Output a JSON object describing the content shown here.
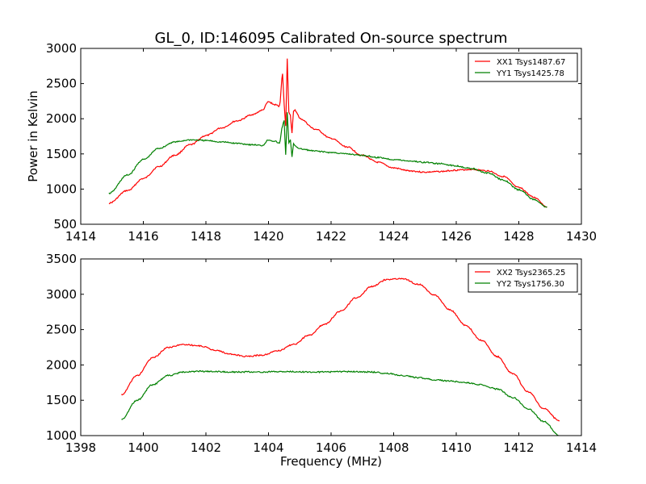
{
  "chart_data": [
    {
      "type": "line",
      "title": "GL_0, ID:146095 Calibrated On-source spectrum",
      "xlabel": "",
      "ylabel": "Power in Kelvin",
      "xlim": [
        1414,
        1430
      ],
      "ylim": [
        500,
        3000
      ],
      "xticks": [
        "1414",
        "1416",
        "1418",
        "1420",
        "1422",
        "1424",
        "1426",
        "1428",
        "1430"
      ],
      "yticks": [
        "500",
        "1000",
        "1500",
        "2000",
        "2500",
        "3000"
      ],
      "grid": false,
      "legend_position": "top-right",
      "series": [
        {
          "name": "XX1 Tsys1487.67",
          "color": "#ff0000",
          "x": [
            1414.9,
            1415.5,
            1416.0,
            1416.5,
            1417.0,
            1417.5,
            1418.0,
            1418.5,
            1419.0,
            1419.5,
            1419.8,
            1420.0,
            1420.2,
            1420.35,
            1420.45,
            1420.5,
            1420.55,
            1420.6,
            1420.65,
            1420.7,
            1420.75,
            1420.8,
            1420.85,
            1420.9,
            1421.0,
            1421.5,
            1422.0,
            1422.5,
            1423.0,
            1423.5,
            1424.0,
            1424.5,
            1425.0,
            1425.5,
            1426.0,
            1426.5,
            1427.0,
            1427.5,
            1428.0,
            1428.5,
            1428.9
          ],
          "values": [
            800,
            980,
            1150,
            1320,
            1480,
            1630,
            1760,
            1870,
            1970,
            2060,
            2120,
            2240,
            2200,
            2180,
            2640,
            2200,
            1900,
            2850,
            2100,
            2050,
            1800,
            2100,
            2120,
            2090,
            2000,
            1850,
            1720,
            1600,
            1480,
            1380,
            1300,
            1260,
            1240,
            1250,
            1270,
            1280,
            1260,
            1180,
            1020,
            880,
            750
          ]
        },
        {
          "name": "YY1 Tsys1425.78",
          "color": "#008000",
          "x": [
            1414.9,
            1415.5,
            1416.0,
            1416.5,
            1417.0,
            1417.5,
            1418.0,
            1418.5,
            1419.0,
            1419.5,
            1419.8,
            1420.0,
            1420.2,
            1420.35,
            1420.45,
            1420.5,
            1420.55,
            1420.6,
            1420.65,
            1420.7,
            1420.75,
            1420.8,
            1420.85,
            1420.9,
            1421.0,
            1421.5,
            1422.0,
            1422.5,
            1423.0,
            1423.5,
            1424.0,
            1424.5,
            1425.0,
            1425.5,
            1426.0,
            1426.5,
            1427.0,
            1427.5,
            1428.0,
            1428.5,
            1428.9
          ],
          "values": [
            940,
            1200,
            1420,
            1580,
            1670,
            1700,
            1690,
            1670,
            1650,
            1630,
            1620,
            1700,
            1680,
            1650,
            1900,
            1980,
            1480,
            2100,
            1650,
            1700,
            1450,
            1650,
            1620,
            1600,
            1570,
            1540,
            1520,
            1500,
            1480,
            1450,
            1420,
            1400,
            1380,
            1360,
            1330,
            1290,
            1230,
            1130,
            990,
            850,
            740
          ]
        }
      ]
    },
    {
      "type": "line",
      "title": "",
      "xlabel": "Frequency (MHz)",
      "ylabel": "",
      "xlim": [
        1398,
        1414
      ],
      "ylim": [
        1000,
        3500
      ],
      "xticks": [
        "1398",
        "1400",
        "1402",
        "1404",
        "1406",
        "1408",
        "1410",
        "1412",
        "1414"
      ],
      "yticks": [
        "1000",
        "1500",
        "2000",
        "2500",
        "3000",
        "3500"
      ],
      "grid": false,
      "legend_position": "top-right",
      "series": [
        {
          "name": "XX2 Tsys2365.25",
          "color": "#ff0000",
          "x": [
            1399.3,
            1399.8,
            1400.3,
            1400.8,
            1401.3,
            1401.8,
            1402.3,
            1402.8,
            1403.3,
            1403.8,
            1404.3,
            1404.8,
            1405.3,
            1405.8,
            1406.3,
            1406.8,
            1407.3,
            1407.8,
            1408.3,
            1408.8,
            1409.3,
            1409.8,
            1410.3,
            1410.8,
            1411.3,
            1411.8,
            1412.3,
            1412.8,
            1413.3
          ],
          "values": [
            1580,
            1850,
            2100,
            2250,
            2290,
            2270,
            2210,
            2150,
            2120,
            2140,
            2200,
            2290,
            2420,
            2580,
            2760,
            2950,
            3110,
            3210,
            3220,
            3140,
            2990,
            2780,
            2560,
            2350,
            2120,
            1880,
            1620,
            1380,
            1210
          ]
        },
        {
          "name": "YY2 Tsys1756.30",
          "color": "#008000",
          "x": [
            1399.3,
            1399.8,
            1400.3,
            1400.8,
            1401.3,
            1401.8,
            1402.3,
            1402.8,
            1403.3,
            1403.8,
            1404.3,
            1404.8,
            1405.3,
            1405.8,
            1406.3,
            1406.8,
            1407.3,
            1407.8,
            1408.3,
            1408.8,
            1409.3,
            1409.8,
            1410.3,
            1410.8,
            1411.3,
            1411.8,
            1412.3,
            1412.8,
            1413.3
          ],
          "values": [
            1230,
            1500,
            1720,
            1850,
            1900,
            1910,
            1905,
            1900,
            1900,
            1900,
            1905,
            1905,
            1900,
            1900,
            1905,
            1905,
            1900,
            1880,
            1850,
            1820,
            1790,
            1770,
            1750,
            1720,
            1660,
            1540,
            1380,
            1200,
            1000
          ]
        }
      ]
    }
  ]
}
